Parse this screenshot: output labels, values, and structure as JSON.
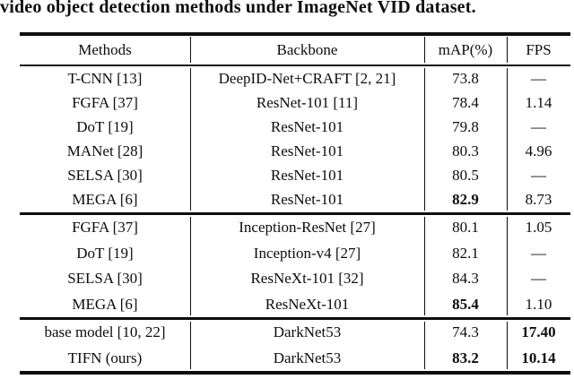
{
  "caption": "video object detection methods under ImageNet VID dataset.",
  "colors": {
    "ink": "#0d0d0d",
    "background": "#ffffff"
  },
  "table": {
    "columns": [
      "Methods",
      "Backbone",
      "mAP(%)",
      "FPS"
    ],
    "groups": [
      {
        "rows": [
          {
            "method": "T-CNN [13]",
            "backbone": "DeepID-Net+CRAFT [2, 21]",
            "map": "73.8",
            "map_b": false,
            "fps": "—",
            "fps_b": false
          },
          {
            "method": "FGFA [37]",
            "backbone": "ResNet-101 [11]",
            "map": "78.4",
            "map_b": false,
            "fps": "1.14",
            "fps_b": false
          },
          {
            "method": "DoT [19]",
            "backbone": "ResNet-101",
            "map": "79.8",
            "map_b": false,
            "fps": "—",
            "fps_b": false
          },
          {
            "method": "MANet [28]",
            "backbone": "ResNet-101",
            "map": "80.3",
            "map_b": false,
            "fps": "4.96",
            "fps_b": false
          },
          {
            "method": "SELSA [30]",
            "backbone": "ResNet-101",
            "map": "80.5",
            "map_b": false,
            "fps": "—",
            "fps_b": false
          },
          {
            "method": "MEGA [6]",
            "backbone": "ResNet-101",
            "map": "82.9",
            "map_b": true,
            "fps": "8.73",
            "fps_b": false
          }
        ]
      },
      {
        "rows": [
          {
            "method": "FGFA [37]",
            "backbone": "Inception-ResNet [27]",
            "map": "80.1",
            "map_b": false,
            "fps": "1.05",
            "fps_b": false
          },
          {
            "method": "DoT [19]",
            "backbone": "Inception-v4 [27]",
            "map": "82.1",
            "map_b": false,
            "fps": "—",
            "fps_b": false
          },
          {
            "method": "SELSA [30]",
            "backbone": "ResNeXt-101 [32]",
            "map": "84.3",
            "map_b": false,
            "fps": "—",
            "fps_b": false
          },
          {
            "method": "MEGA [6]",
            "backbone": "ResNeXt-101",
            "map": "85.4",
            "map_b": true,
            "fps": "1.10",
            "fps_b": false
          }
        ]
      },
      {
        "rows": [
          {
            "method": "base model [10, 22]",
            "backbone": "DarkNet53",
            "map": "74.3",
            "map_b": false,
            "fps": "17.40",
            "fps_b": true
          },
          {
            "method": "TIFN (ours)",
            "backbone": "DarkNet53",
            "map": "83.2",
            "map_b": true,
            "fps": "10.14",
            "fps_b": true
          }
        ]
      }
    ]
  }
}
